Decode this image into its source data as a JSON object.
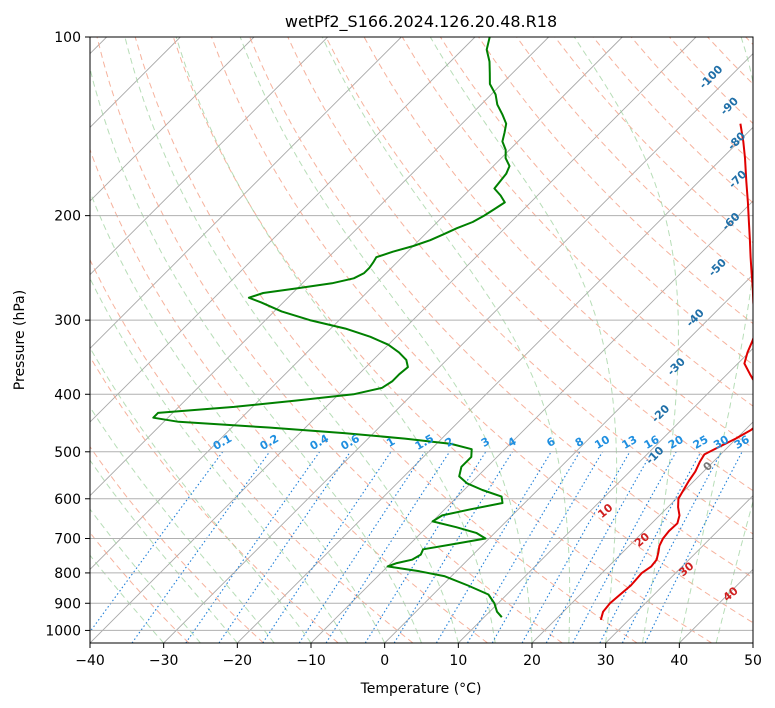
{
  "chart_data": {
    "type": "line",
    "title": "wetPf2_S166.2024.126.20.48.R18",
    "xlabel": "Temperature (°C)",
    "ylabel": "Pressure (hPa)",
    "xlim": [
      -40,
      50
    ],
    "ylim": [
      1050,
      100
    ],
    "y_scale": "log",
    "grid": true,
    "x_ticks": [
      -40,
      -30,
      -20,
      -10,
      0,
      10,
      20,
      30,
      40,
      50
    ],
    "y_ticks": [
      100,
      200,
      300,
      400,
      500,
      600,
      700,
      800,
      900,
      1000
    ],
    "series": [
      {
        "role": "temperature",
        "color": "#e00000",
        "pressure": [
          960,
          930,
          900,
          870,
          840,
          800,
          780,
          760,
          740,
          720,
          700,
          680,
          660,
          640,
          620,
          600,
          580,
          560,
          540,
          520,
          505,
          490,
          475,
          460,
          445,
          430,
          415,
          400,
          385,
          370,
          355,
          340,
          325,
          310,
          295,
          280,
          265,
          250,
          235,
          220,
          205,
          190,
          175,
          160,
          150,
          140
        ],
        "temperature": [
          26.2,
          25.4,
          25.2,
          25.4,
          25.6,
          25.4,
          25.8,
          25.6,
          24.9,
          24.1,
          23.6,
          23.4,
          23.5,
          22.7,
          21.4,
          20.3,
          19.8,
          19.3,
          18.9,
          18.2,
          17.8,
          18.8,
          19.9,
          20.8,
          21.1,
          20.7,
          19.5,
          17.6,
          15.3,
          13.1,
          10.9,
          9.8,
          8.9,
          7.8,
          5.8,
          3.8,
          1.8,
          -0.4,
          -2.7,
          -5.1,
          -7.7,
          -10.5,
          -13.6,
          -16.9,
          -19.4,
          -22.2
        ]
      },
      {
        "role": "dewpoint",
        "color": "#008000",
        "pressure": [
          950,
          930,
          900,
          870,
          840,
          810,
          795,
          780,
          770,
          760,
          745,
          730,
          715,
          700,
          685,
          670,
          655,
          640,
          625,
          610,
          595,
          580,
          565,
          550,
          530,
          510,
          495,
          485,
          475,
          465,
          455,
          445,
          438,
          430,
          420,
          410,
          400,
          390,
          380,
          370,
          360,
          350,
          340,
          330,
          320,
          310,
          300,
          290,
          280,
          275,
          270,
          265,
          260,
          255,
          250,
          245,
          240,
          235,
          230,
          225,
          220,
          215,
          210,
          205,
          200,
          195,
          190,
          185,
          180,
          175,
          170,
          165,
          160,
          155,
          150,
          145,
          140,
          135,
          130,
          125,
          120,
          115,
          110,
          105,
          100
        ],
        "dewpoint": [
          12.4,
          11.0,
          9.5,
          7.5,
          3.5,
          -1.0,
          -5.0,
          -10.0,
          -9.2,
          -7.6,
          -7.1,
          -7.5,
          -4.0,
          -0.5,
          -2.5,
          -6.0,
          -10.0,
          -9.5,
          -6.5,
          -3.0,
          -4.0,
          -7.5,
          -10.5,
          -12.5,
          -13.5,
          -13.5,
          -14.5,
          -18.0,
          -25.0,
          -34.0,
          -45.0,
          -58.0,
          -62.0,
          -62.0,
          -52.5,
          -45.0,
          -38.0,
          -35.0,
          -34.5,
          -34.5,
          -34.3,
          -35.5,
          -37.5,
          -40.0,
          -43.5,
          -48.0,
          -54.0,
          -59.0,
          -63.0,
          -65.3,
          -64.0,
          -60.0,
          -56.0,
          -53.7,
          -53.0,
          -53.0,
          -53.2,
          -53.5,
          -52.0,
          -50.0,
          -48.5,
          -47.5,
          -46.5,
          -45.2,
          -44.5,
          -44.0,
          -43.5,
          -45.0,
          -46.8,
          -47.0,
          -47.2,
          -47.8,
          -49.4,
          -50.5,
          -52.1,
          -53.0,
          -54.0,
          -55.8,
          -57.8,
          -59.4,
          -61.6,
          -63.1,
          -64.7,
          -66.7,
          -68.0
        ]
      }
    ],
    "isotherm_labels": [],
    "dry_adiabat_labels": [],
    "mixing_ratio_labels": [
      "0.1",
      "0.2",
      "0.4",
      "0.6",
      "1",
      "1.5",
      "2",
      "3",
      "4",
      "6",
      "8",
      "10",
      "13",
      "16",
      "20",
      "25",
      "30",
      "36"
    ],
    "moist_adiabat_labels": [
      "10",
      "20",
      "30",
      "40"
    ],
    "temperature_labels": [
      "-100",
      "-90",
      "-80",
      "-70",
      "-60",
      "-50",
      "-40",
      "-30",
      "-20",
      "-10",
      "0"
    ]
  }
}
